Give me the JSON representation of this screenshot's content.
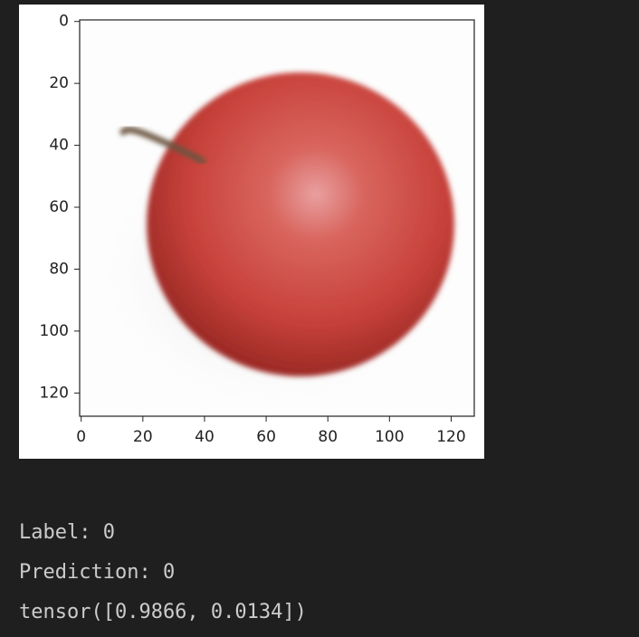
{
  "chart_data": {
    "type": "image",
    "xlim": [
      -0.5,
      127.5
    ],
    "ylim": [
      127.5,
      -0.5
    ],
    "xticks": [
      0,
      20,
      40,
      60,
      80,
      100,
      120
    ],
    "yticks": [
      0,
      20,
      40,
      60,
      80,
      100,
      120
    ]
  },
  "output": {
    "lines": [
      "Label: 0",
      "Prediction: 0",
      "tensor([0.9866, 0.0134])"
    ]
  }
}
